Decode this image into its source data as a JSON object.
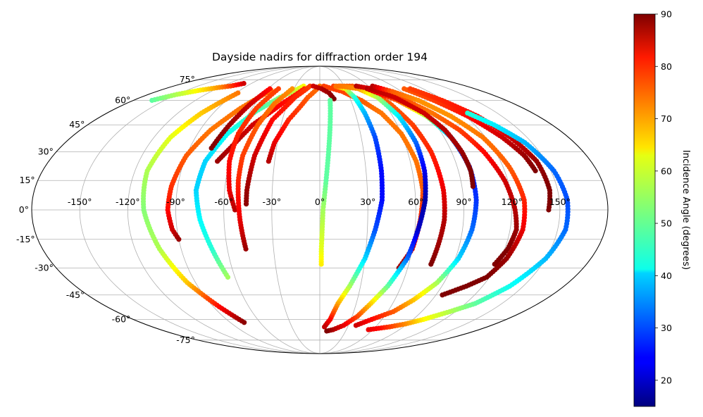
{
  "chart_data": {
    "type": "scatter",
    "projection": "mollweide",
    "title": "Dayside nadirs for diffraction order 194",
    "x_tick_labels": [
      {
        "lon": -150,
        "label": "-150°"
      },
      {
        "lon": -120,
        "label": "-120°"
      },
      {
        "lon": -90,
        "label": "-90°"
      },
      {
        "lon": -60,
        "label": "-60°"
      },
      {
        "lon": -30,
        "label": "-30°"
      },
      {
        "lon": 0,
        "label": "0°"
      },
      {
        "lon": 30,
        "label": "30°"
      },
      {
        "lon": 60,
        "label": "60°"
      },
      {
        "lon": 90,
        "label": "90°"
      },
      {
        "lon": 120,
        "label": "120°"
      },
      {
        "lon": 150,
        "label": "150°"
      }
    ],
    "y_tick_labels": [
      {
        "lat": 75,
        "label": "75°"
      },
      {
        "lat": 60,
        "label": "60°"
      },
      {
        "lat": 45,
        "label": "45°"
      },
      {
        "lat": 30,
        "label": "30°"
      },
      {
        "lat": 15,
        "label": "15°"
      },
      {
        "lat": 0,
        "label": "0°"
      },
      {
        "lat": -15,
        "label": "-15°"
      },
      {
        "lat": -30,
        "label": "-30°"
      },
      {
        "lat": -45,
        "label": "-45°"
      },
      {
        "lat": -60,
        "label": "-60°"
      },
      {
        "lat": -75,
        "label": "-75°"
      }
    ],
    "grid": true,
    "colorbar": {
      "label": "Incidence Angle (degrees)",
      "range": [
        15,
        90
      ],
      "ticks": [
        {
          "value": 20,
          "label": "20"
        },
        {
          "value": 30,
          "label": "30"
        },
        {
          "value": 40,
          "label": "40"
        },
        {
          "value": 50,
          "label": "50"
        },
        {
          "value": 60,
          "label": "60"
        },
        {
          "value": 70,
          "label": "70"
        },
        {
          "value": 80,
          "label": "80"
        },
        {
          "value": 90,
          "label": "90"
        }
      ],
      "colormap": "jet"
    },
    "series": [
      {
        "points": [
          [
            -162,
            60,
            50
          ],
          [
            -150,
            64,
            56
          ],
          [
            -135,
            67,
            63
          ],
          [
            -120,
            69,
            70
          ],
          [
            -110,
            70,
            76
          ],
          [
            -100,
            72,
            84
          ]
        ]
      },
      {
        "points": [
          [
            -55,
            67,
            72
          ],
          [
            -70,
            55,
            72
          ],
          [
            -82,
            42,
            72
          ],
          [
            -90,
            28,
            74
          ],
          [
            -94,
            12,
            77
          ],
          [
            -95,
            0,
            80
          ],
          [
            -93,
            -10,
            84
          ],
          [
            -90,
            -15,
            88
          ]
        ]
      },
      {
        "points": [
          [
            -20,
            70,
            62
          ],
          [
            -40,
            62,
            53
          ],
          [
            -55,
            53,
            48
          ],
          [
            -68,
            40,
            44
          ],
          [
            -76,
            25,
            40
          ],
          [
            -78,
            10,
            40
          ],
          [
            -75,
            -5,
            43
          ],
          [
            -70,
            -20,
            46
          ],
          [
            -65,
            -35,
            55
          ]
        ]
      },
      {
        "points": [
          [
            -88,
            65,
            72
          ],
          [
            -100,
            52,
            66
          ],
          [
            -108,
            38,
            60
          ],
          [
            -112,
            20,
            56
          ],
          [
            -110,
            0,
            53
          ],
          [
            -104,
            -20,
            56
          ],
          [
            -96,
            -38,
            66
          ],
          [
            -85,
            -52,
            80
          ],
          [
            -76,
            -62,
            89
          ]
        ]
      },
      {
        "points": [
          [
            -18,
            68,
            78
          ],
          [
            -35,
            58,
            80
          ],
          [
            -52,
            45,
            84
          ],
          [
            -62,
            32,
            86
          ],
          [
            -68,
            25,
            88
          ]
        ]
      },
      {
        "points": [
          [
            -48,
            68,
            76
          ],
          [
            -56,
            55,
            76
          ],
          [
            -60,
            40,
            78
          ],
          [
            -60,
            25,
            80
          ],
          [
            -57,
            10,
            82
          ],
          [
            -53,
            0,
            86
          ]
        ]
      },
      {
        "points": [
          [
            -32,
            68,
            70
          ],
          [
            -42,
            58,
            72
          ],
          [
            -48,
            45,
            74
          ],
          [
            -52,
            28,
            76
          ],
          [
            -52,
            15,
            78
          ],
          [
            -50,
            -5,
            82
          ],
          [
            -48,
            -20,
            88
          ]
        ]
      },
      {
        "points": [
          [
            -58,
            68,
            80
          ],
          [
            -64,
            58,
            84
          ],
          [
            -70,
            45,
            88
          ],
          [
            -75,
            32,
            90
          ]
        ]
      },
      {
        "points": [
          [
            0,
            70,
            72
          ],
          [
            -12,
            62,
            74
          ],
          [
            -25,
            48,
            78
          ],
          [
            -32,
            35,
            82
          ],
          [
            -34,
            25,
            86
          ]
        ]
      },
      {
        "points": [
          [
            -12,
            70,
            76
          ],
          [
            -25,
            62,
            78
          ],
          [
            -38,
            48,
            80
          ],
          [
            -44,
            28,
            84
          ],
          [
            -46,
            10,
            88
          ],
          [
            -46,
            3,
            89
          ]
        ]
      },
      {
        "points": [
          [
            5,
            70,
            76
          ],
          [
            25,
            66,
            76
          ],
          [
            40,
            60,
            74
          ],
          [
            52,
            52,
            72
          ],
          [
            60,
            40,
            72
          ],
          [
            64,
            25,
            72
          ],
          [
            65,
            10,
            74
          ],
          [
            63,
            -5,
            78
          ],
          [
            60,
            -20,
            84
          ],
          [
            54,
            -30,
            88
          ]
        ]
      },
      {
        "points": [
          [
            -8,
            70,
            84
          ],
          [
            2,
            68,
            86
          ],
          [
            10,
            65,
            88
          ],
          [
            14,
            61,
            90
          ]
        ]
      },
      {
        "points": [
          [
            10,
            60,
            50
          ],
          [
            8,
            45,
            50
          ],
          [
            6,
            30,
            50
          ],
          [
            4,
            15,
            50
          ],
          [
            2,
            0,
            55
          ],
          [
            1,
            -20,
            60
          ],
          [
            1,
            -28,
            63
          ]
        ]
      },
      {
        "points": [
          [
            17,
            70,
            76
          ],
          [
            30,
            68,
            62
          ],
          [
            35,
            62,
            46
          ],
          [
            38,
            52,
            38
          ],
          [
            40,
            38,
            30
          ],
          [
            40,
            20,
            25
          ],
          [
            39,
            5,
            25
          ],
          [
            35,
            -10,
            30
          ],
          [
            30,
            -25,
            40
          ],
          [
            22,
            -40,
            55
          ],
          [
            15,
            -50,
            68
          ],
          [
            10,
            -60,
            80
          ],
          [
            5,
            -65,
            85
          ]
        ]
      },
      {
        "points": [
          [
            20,
            70,
            72
          ],
          [
            40,
            70,
            74
          ],
          [
            55,
            66,
            74
          ],
          [
            65,
            58,
            74
          ],
          [
            72,
            45,
            76
          ],
          [
            76,
            30,
            78
          ],
          [
            78,
            10,
            82
          ],
          [
            78,
            -5,
            86
          ],
          [
            76,
            -20,
            88
          ],
          [
            75,
            -28,
            90
          ]
        ]
      },
      {
        "points": [
          [
            25,
            70,
            72
          ],
          [
            45,
            68,
            70
          ],
          [
            58,
            62,
            56
          ],
          [
            65,
            50,
            42
          ],
          [
            68,
            35,
            32
          ],
          [
            68,
            20,
            23
          ],
          [
            66,
            5,
            18
          ],
          [
            62,
            -10,
            20
          ],
          [
            58,
            -25,
            32
          ],
          [
            50,
            -40,
            50
          ],
          [
            42,
            -50,
            65
          ],
          [
            35,
            -58,
            75
          ],
          [
            25,
            -64,
            82
          ],
          [
            15,
            -67,
            86
          ],
          [
            8,
            -68,
            90
          ]
        ]
      },
      {
        "points": [
          [
            45,
            70,
            86
          ],
          [
            60,
            68,
            82
          ],
          [
            80,
            62,
            76
          ],
          [
            95,
            52,
            72
          ],
          [
            105,
            42,
            76
          ],
          [
            112,
            30,
            80
          ],
          [
            118,
            15,
            84
          ],
          [
            122,
            0,
            86
          ],
          [
            124,
            -10,
            88
          ],
          [
            122,
            -20,
            90
          ],
          [
            118,
            -28,
            90
          ]
        ]
      },
      {
        "points": [
          [
            55,
            68,
            86
          ],
          [
            75,
            60,
            74
          ],
          [
            88,
            50,
            56
          ],
          [
            95,
            38,
            35
          ],
          [
            98,
            22,
            26
          ],
          [
            98,
            5,
            28
          ],
          [
            96,
            -10,
            32
          ],
          [
            92,
            -25,
            40
          ],
          [
            85,
            -38,
            55
          ],
          [
            75,
            -48,
            66
          ],
          [
            65,
            -55,
            74
          ],
          [
            50,
            -60,
            80
          ],
          [
            38,
            -64,
            84
          ]
        ]
      },
      {
        "points": [
          [
            60,
            68,
            86
          ],
          [
            75,
            62,
            84
          ],
          [
            88,
            52,
            84
          ],
          [
            94,
            42,
            86
          ],
          [
            97,
            30,
            88
          ],
          [
            98,
            20,
            90
          ],
          [
            97,
            12,
            90
          ]
        ]
      },
      {
        "points": [
          [
            65,
            70,
            86
          ],
          [
            80,
            66,
            74
          ],
          [
            95,
            60,
            70
          ],
          [
            108,
            50,
            70
          ],
          [
            118,
            38,
            72
          ],
          [
            124,
            22,
            74
          ],
          [
            128,
            5,
            78
          ],
          [
            128,
            -10,
            82
          ],
          [
            124,
            -25,
            88
          ],
          [
            118,
            -35,
            90
          ],
          [
            108,
            -40,
            90
          ],
          [
            95,
            -45,
            90
          ]
        ]
      },
      {
        "points": [
          [
            98,
            68,
            74
          ],
          [
            110,
            60,
            76
          ],
          [
            122,
            50,
            80
          ],
          [
            132,
            38,
            84
          ],
          [
            138,
            28,
            88
          ],
          [
            140,
            20,
            90
          ]
        ]
      },
      {
        "points": [
          [
            105,
            68,
            76
          ],
          [
            118,
            60,
            78
          ],
          [
            130,
            50,
            80
          ],
          [
            138,
            38,
            84
          ],
          [
            144,
            25,
            88
          ],
          [
            145,
            10,
            90
          ],
          [
            143,
            0,
            90
          ]
        ]
      },
      {
        "points": [
          [
            125,
            52,
            46
          ],
          [
            135,
            45,
            42
          ],
          [
            145,
            35,
            38
          ],
          [
            152,
            20,
            32
          ],
          [
            155,
            5,
            30
          ],
          [
            155,
            -10,
            32
          ],
          [
            150,
            -25,
            38
          ],
          [
            140,
            -40,
            44
          ],
          [
            128,
            -50,
            50
          ],
          [
            115,
            -55,
            56
          ],
          [
            100,
            -60,
            62
          ],
          [
            88,
            -63,
            70
          ],
          [
            75,
            -65,
            76
          ],
          [
            65,
            -66,
            80
          ],
          [
            55,
            -67,
            82
          ]
        ]
      }
    ]
  }
}
